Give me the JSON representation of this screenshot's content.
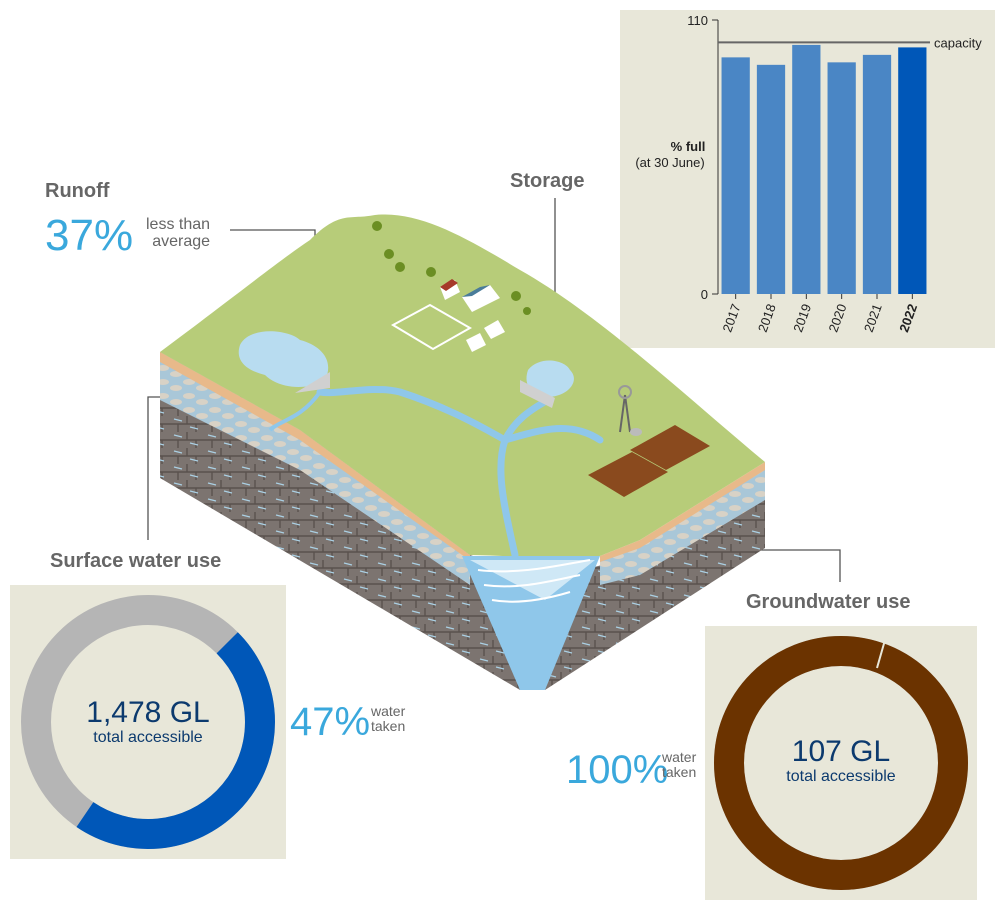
{
  "runoff": {
    "heading": "Runoff",
    "value": "37%",
    "note": "less than\naverage"
  },
  "storage": {
    "heading": "Storage"
  },
  "surface_water": {
    "heading": "Surface water use",
    "total": "1,478 GL",
    "total_label": "total accessible",
    "pct": "47%",
    "pct_label": "water\ntaken",
    "fraction_taken": 0.47,
    "colors": {
      "taken": "#0057b8",
      "remaining": "#b5b5b5"
    }
  },
  "groundwater": {
    "heading": "Groundwater use",
    "total": "107 GL",
    "total_label": "total accessible",
    "pct": "100%",
    "pct_label": "water\ntaken",
    "fraction_taken": 1.0,
    "colors": {
      "taken": "#6b3300",
      "remaining": "#b5b5b5"
    }
  },
  "chart_data": {
    "type": "bar",
    "ylabel_bold": "% full",
    "ylabel_sub": "(at 30 June)",
    "ylim": [
      0,
      110
    ],
    "yticks": [
      "0",
      "110"
    ],
    "categories": [
      "2017",
      "2018",
      "2019",
      "2020",
      "2021",
      "2022"
    ],
    "values": [
      95,
      92,
      100,
      93,
      96,
      99
    ],
    "highlight": "2022",
    "capacity_value": 101,
    "capacity_label": "capacity",
    "colors": {
      "bar": "#4a86c5",
      "highlight": "#0057b8",
      "capacity": "#666666"
    }
  }
}
